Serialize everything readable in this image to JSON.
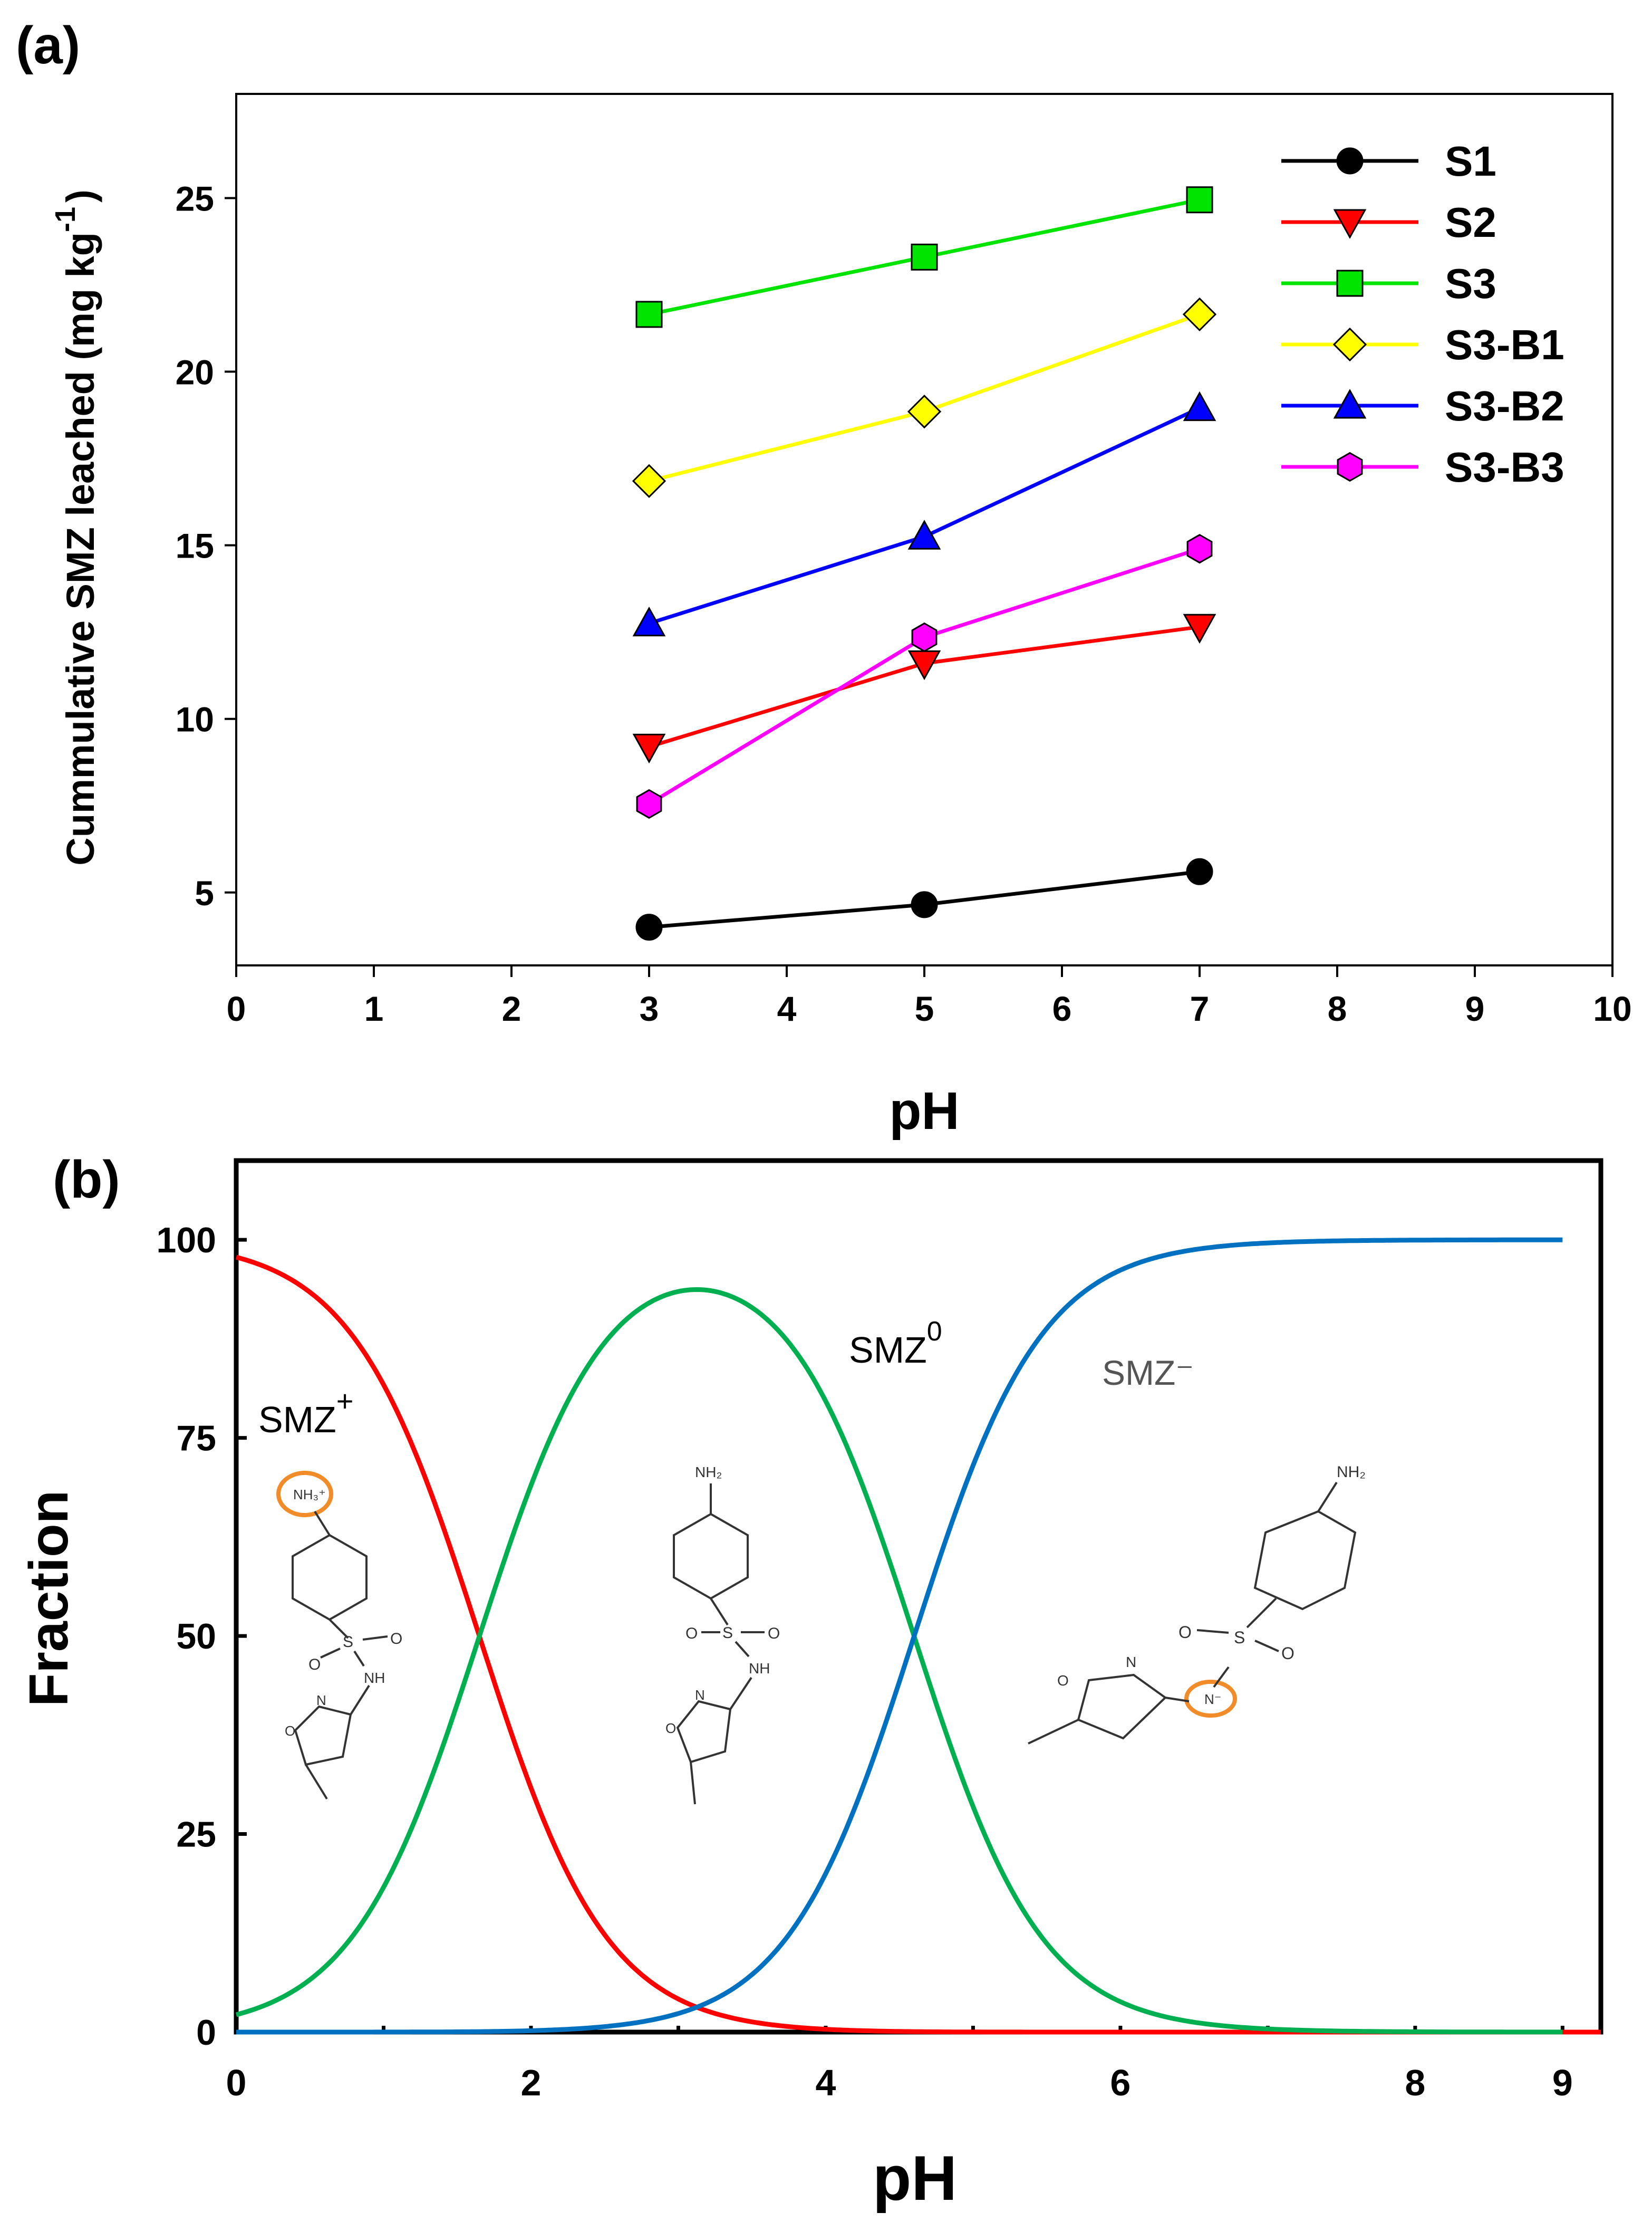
{
  "chart_data": [
    {
      "panel_label": "(a)",
      "type": "line",
      "xlabel": "pH",
      "ylabel_main": "Cummulative SMZ leached (mg kg",
      "ylabel_exp": "-1",
      "ylabel_close": ")",
      "xlim": [
        0,
        10
      ],
      "ylim": [
        2.9,
        28
      ],
      "x_ticks": [
        0,
        1,
        2,
        3,
        4,
        5,
        6,
        7,
        8,
        9,
        10
      ],
      "y_ticks": [
        5,
        10,
        15,
        20,
        25
      ],
      "x": [
        3,
        5,
        7
      ],
      "legend_position": "top-right",
      "series": [
        {
          "name": "S1",
          "values": [
            4.0,
            4.65,
            5.6
          ],
          "color": "#000000",
          "marker": "circle"
        },
        {
          "name": "S2",
          "values": [
            9.2,
            11.6,
            12.65
          ],
          "color": "#ff0000",
          "marker": "triangle-down"
        },
        {
          "name": "S3",
          "values": [
            21.65,
            23.3,
            24.95
          ],
          "color": "#00e400",
          "marker": "square"
        },
        {
          "name": "S3-B1",
          "values": [
            16.85,
            18.85,
            21.65
          ],
          "color": "#ffff00",
          "marker": "diamond"
        },
        {
          "name": "S3-B2",
          "values": [
            12.75,
            15.25,
            18.95
          ],
          "color": "#0000ff",
          "marker": "triangle-up"
        },
        {
          "name": "S3-B3",
          "values": [
            7.55,
            12.35,
            14.9
          ],
          "color": "#ff00ff",
          "marker": "hexagon"
        }
      ]
    },
    {
      "panel_label": "(b)",
      "type": "line",
      "xlabel": "pH",
      "ylabel": "Fraction",
      "xlim": [
        0,
        9.26
      ],
      "ylim": [
        0,
        110
      ],
      "x_ticks": [
        0,
        2,
        4,
        6,
        8,
        9
      ],
      "minor_x_ticks": [
        1,
        3,
        5,
        7
      ],
      "y_ticks": [
        0,
        25,
        50,
        75,
        100
      ],
      "pKa1": 1.65,
      "pKa2": 4.6,
      "series": [
        {
          "name": "SMZ+",
          "label_base": "SMZ",
          "label_sup": "+",
          "color": "#ff0000",
          "x_range": [
            0,
            9.26
          ]
        },
        {
          "name": "SMZ0",
          "label_base": "SMZ",
          "label_sup": "0",
          "color": "#00b050",
          "x_range": [
            0,
            9.0
          ]
        },
        {
          "name": "SMZ-",
          "label_base": "SMZ⁻",
          "label_sup": "",
          "color": "#0070c0",
          "x_range": [
            0,
            9.0
          ]
        }
      ],
      "structure_labels": {
        "cation_amine": "NH₃⁺",
        "amine": "NH₂",
        "sulfur": "S",
        "oxygen": "O",
        "nitrogen": "N",
        "nh": "NH",
        "anion_nitrogen": "N⁻"
      }
    }
  ]
}
